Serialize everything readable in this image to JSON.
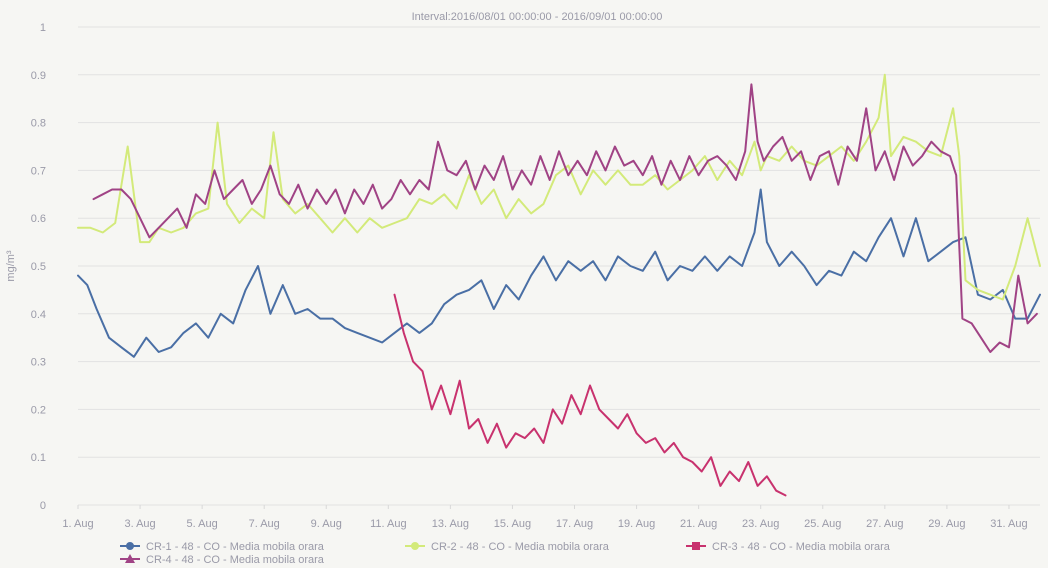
{
  "chart_data": {
    "type": "line",
    "title": "Interval:2016/08/01 00:00:00 - 2016/09/01 00:00:00",
    "xlabel": "",
    "ylabel": "mg/m³",
    "xlim": [
      1,
      32
    ],
    "ylim": [
      0,
      1
    ],
    "yticks": [
      0,
      0.1,
      0.2,
      0.3,
      0.4,
      0.5,
      0.6,
      0.7,
      0.8,
      0.9,
      1
    ],
    "xtick_labels": [
      {
        "day": 1,
        "label": "1. Aug"
      },
      {
        "day": 3,
        "label": "3. Aug"
      },
      {
        "day": 5,
        "label": "5. Aug"
      },
      {
        "day": 7,
        "label": "7. Aug"
      },
      {
        "day": 9,
        "label": "9. Aug"
      },
      {
        "day": 11,
        "label": "11. Aug"
      },
      {
        "day": 13,
        "label": "13. Aug"
      },
      {
        "day": 15,
        "label": "15. Aug"
      },
      {
        "day": 17,
        "label": "17. Aug"
      },
      {
        "day": 19,
        "label": "19. Aug"
      },
      {
        "day": 21,
        "label": "21. Aug"
      },
      {
        "day": 23,
        "label": "23. Aug"
      },
      {
        "day": 25,
        "label": "25. Aug"
      },
      {
        "day": 27,
        "label": "27. Aug"
      },
      {
        "day": 29,
        "label": "29. Aug"
      },
      {
        "day": 31,
        "label": "31. Aug"
      }
    ],
    "legend_position": "bottom",
    "series": [
      {
        "name": "CR-1 - 48 - CO - Media mobila orara",
        "color": "#4a6fa5",
        "marker": "circle",
        "x": [
          1.0,
          1.3,
          1.6,
          2.0,
          2.4,
          2.8,
          3.2,
          3.6,
          4.0,
          4.4,
          4.8,
          5.2,
          5.6,
          6.0,
          6.4,
          6.8,
          7.2,
          7.6,
          8.0,
          8.4,
          8.8,
          9.2,
          9.6,
          10.0,
          10.4,
          10.8,
          11.2,
          11.6,
          12.0,
          12.4,
          12.8,
          13.2,
          13.6,
          14.0,
          14.4,
          14.8,
          15.2,
          15.6,
          16.0,
          16.4,
          16.8,
          17.2,
          17.6,
          18.0,
          18.4,
          18.8,
          19.2,
          19.6,
          20.0,
          20.4,
          20.8,
          21.2,
          21.6,
          22.0,
          22.4,
          22.8,
          23.0,
          23.2,
          23.6,
          24.0,
          24.4,
          24.8,
          25.2,
          25.6,
          26.0,
          26.4,
          26.8,
          27.2,
          27.6,
          28.0,
          28.4,
          28.8,
          29.2,
          29.6,
          30.0,
          30.4,
          30.8,
          31.2,
          31.6,
          32.0
        ],
        "y": [
          0.48,
          0.46,
          0.41,
          0.35,
          0.33,
          0.31,
          0.35,
          0.32,
          0.33,
          0.36,
          0.38,
          0.35,
          0.4,
          0.38,
          0.45,
          0.5,
          0.4,
          0.46,
          0.4,
          0.41,
          0.39,
          0.39,
          0.37,
          0.36,
          0.35,
          0.34,
          0.36,
          0.38,
          0.36,
          0.38,
          0.42,
          0.44,
          0.45,
          0.47,
          0.41,
          0.46,
          0.43,
          0.48,
          0.52,
          0.47,
          0.51,
          0.49,
          0.51,
          0.47,
          0.52,
          0.5,
          0.49,
          0.53,
          0.47,
          0.5,
          0.49,
          0.52,
          0.49,
          0.52,
          0.5,
          0.57,
          0.66,
          0.55,
          0.5,
          0.53,
          0.5,
          0.46,
          0.49,
          0.48,
          0.53,
          0.51,
          0.56,
          0.6,
          0.52,
          0.6,
          0.51,
          0.53,
          0.55,
          0.56,
          0.44,
          0.43,
          0.45,
          0.39,
          0.39,
          0.44
        ]
      },
      {
        "name": "CR-2 - 48 - CO - Media mobila orara",
        "color": "#d3ea7a",
        "marker": "circle",
        "x": [
          1.0,
          1.4,
          1.8,
          2.2,
          2.6,
          3.0,
          3.3,
          3.6,
          4.0,
          4.4,
          4.8,
          5.2,
          5.5,
          5.8,
          6.2,
          6.6,
          7.0,
          7.3,
          7.6,
          8.0,
          8.4,
          8.8,
          9.2,
          9.6,
          10.0,
          10.4,
          10.8,
          11.2,
          11.6,
          12.0,
          12.4,
          12.8,
          13.2,
          13.6,
          14.0,
          14.4,
          14.8,
          15.2,
          15.6,
          16.0,
          16.4,
          16.8,
          17.2,
          17.6,
          18.0,
          18.4,
          18.8,
          19.2,
          19.6,
          20.0,
          20.4,
          20.8,
          21.2,
          21.6,
          22.0,
          22.4,
          22.8,
          23.0,
          23.2,
          23.6,
          24.0,
          24.4,
          24.8,
          25.2,
          25.6,
          26.0,
          26.4,
          26.8,
          27.0,
          27.2,
          27.6,
          28.0,
          28.4,
          28.8,
          29.2,
          29.4,
          29.6,
          30.0,
          30.4,
          30.8,
          31.2,
          31.6,
          32.0
        ],
        "y": [
          0.58,
          0.58,
          0.57,
          0.59,
          0.75,
          0.55,
          0.55,
          0.58,
          0.57,
          0.58,
          0.61,
          0.62,
          0.8,
          0.63,
          0.59,
          0.62,
          0.6,
          0.78,
          0.64,
          0.61,
          0.63,
          0.6,
          0.57,
          0.6,
          0.57,
          0.6,
          0.58,
          0.59,
          0.6,
          0.64,
          0.63,
          0.65,
          0.62,
          0.69,
          0.63,
          0.66,
          0.6,
          0.64,
          0.61,
          0.63,
          0.69,
          0.71,
          0.65,
          0.7,
          0.67,
          0.7,
          0.67,
          0.67,
          0.69,
          0.66,
          0.68,
          0.7,
          0.73,
          0.68,
          0.72,
          0.69,
          0.76,
          0.7,
          0.73,
          0.72,
          0.75,
          0.72,
          0.71,
          0.73,
          0.75,
          0.72,
          0.76,
          0.81,
          0.9,
          0.73,
          0.77,
          0.76,
          0.74,
          0.73,
          0.83,
          0.73,
          0.47,
          0.45,
          0.44,
          0.43,
          0.5,
          0.6,
          0.5
        ]
      },
      {
        "name": "CR-3 - 48 - CO - Media mobila orara",
        "color": "#c8326e",
        "marker": "square",
        "x": [
          11.2,
          11.5,
          11.8,
          12.1,
          12.4,
          12.7,
          13.0,
          13.3,
          13.6,
          13.9,
          14.2,
          14.5,
          14.8,
          15.1,
          15.4,
          15.7,
          16.0,
          16.3,
          16.6,
          16.9,
          17.2,
          17.5,
          17.8,
          18.1,
          18.4,
          18.7,
          19.0,
          19.3,
          19.6,
          19.9,
          20.2,
          20.5,
          20.8,
          21.1,
          21.4,
          21.7,
          22.0,
          22.3,
          22.6,
          22.9,
          23.2,
          23.5,
          23.8
        ],
        "y": [
          0.44,
          0.36,
          0.3,
          0.28,
          0.2,
          0.25,
          0.19,
          0.26,
          0.16,
          0.18,
          0.13,
          0.17,
          0.12,
          0.15,
          0.14,
          0.16,
          0.13,
          0.2,
          0.17,
          0.23,
          0.19,
          0.25,
          0.2,
          0.18,
          0.16,
          0.19,
          0.15,
          0.13,
          0.14,
          0.11,
          0.13,
          0.1,
          0.09,
          0.07,
          0.1,
          0.04,
          0.07,
          0.05,
          0.09,
          0.04,
          0.06,
          0.03,
          0.02
        ]
      },
      {
        "name": "CR-4 - 48 - CO - Media mobila orara",
        "color": "#a04385",
        "marker": "triangle",
        "x": [
          1.5,
          1.8,
          2.1,
          2.4,
          2.7,
          3.0,
          3.3,
          3.6,
          3.9,
          4.2,
          4.5,
          4.8,
          5.1,
          5.4,
          5.7,
          6.0,
          6.3,
          6.6,
          6.9,
          7.2,
          7.5,
          7.8,
          8.1,
          8.4,
          8.7,
          9.0,
          9.3,
          9.6,
          9.9,
          10.2,
          10.5,
          10.8,
          11.1,
          11.4,
          11.7,
          12.0,
          12.3,
          12.6,
          12.9,
          13.2,
          13.5,
          13.8,
          14.1,
          14.4,
          14.7,
          15.0,
          15.3,
          15.6,
          15.9,
          16.2,
          16.5,
          16.8,
          17.1,
          17.4,
          17.7,
          18.0,
          18.3,
          18.6,
          18.9,
          19.2,
          19.5,
          19.8,
          20.1,
          20.4,
          20.7,
          21.0,
          21.3,
          21.6,
          21.9,
          22.2,
          22.5,
          22.7,
          22.9,
          23.1,
          23.4,
          23.7,
          24.0,
          24.3,
          24.6,
          24.9,
          25.2,
          25.5,
          25.8,
          26.1,
          26.4,
          26.7,
          27.0,
          27.3,
          27.6,
          27.9,
          28.2,
          28.5,
          28.8,
          29.1,
          29.3,
          29.5,
          29.8,
          30.1,
          30.4,
          30.7,
          31.0,
          31.3,
          31.6,
          31.9
        ],
        "y": [
          0.64,
          0.65,
          0.66,
          0.66,
          0.64,
          0.6,
          0.56,
          0.58,
          0.6,
          0.62,
          0.58,
          0.65,
          0.63,
          0.7,
          0.64,
          0.66,
          0.68,
          0.63,
          0.66,
          0.71,
          0.65,
          0.63,
          0.67,
          0.62,
          0.66,
          0.63,
          0.66,
          0.61,
          0.66,
          0.63,
          0.67,
          0.62,
          0.64,
          0.68,
          0.65,
          0.68,
          0.66,
          0.76,
          0.7,
          0.69,
          0.72,
          0.66,
          0.71,
          0.68,
          0.73,
          0.66,
          0.7,
          0.67,
          0.73,
          0.68,
          0.74,
          0.69,
          0.72,
          0.69,
          0.74,
          0.7,
          0.75,
          0.71,
          0.72,
          0.69,
          0.73,
          0.67,
          0.72,
          0.68,
          0.73,
          0.69,
          0.72,
          0.73,
          0.71,
          0.68,
          0.74,
          0.88,
          0.76,
          0.72,
          0.75,
          0.77,
          0.72,
          0.74,
          0.68,
          0.73,
          0.74,
          0.67,
          0.75,
          0.72,
          0.83,
          0.7,
          0.74,
          0.68,
          0.75,
          0.71,
          0.73,
          0.76,
          0.74,
          0.73,
          0.69,
          0.39,
          0.38,
          0.35,
          0.32,
          0.34,
          0.33,
          0.48,
          0.38,
          0.4
        ]
      }
    ]
  }
}
